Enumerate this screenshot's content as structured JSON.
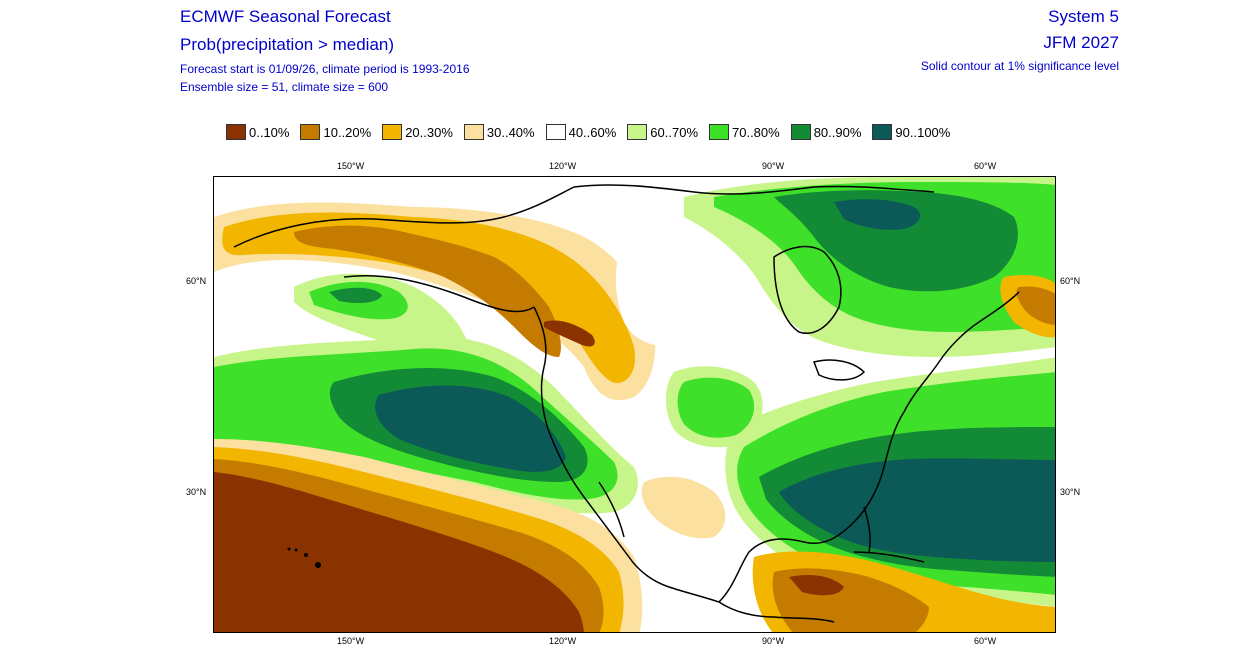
{
  "header": {
    "title": "ECMWF Seasonal Forecast",
    "subtitle": "Prob(precipitation > median)",
    "forecast_info": "Forecast start is 01/09/26, climate period is 1993-2016",
    "ensemble_info": "Ensemble size = 51, climate size = 600",
    "system": "System 5",
    "period": "JFM 2027",
    "significance_note": "Solid contour at 1% significance level"
  },
  "legend": [
    {
      "label": "0..10%",
      "color": "#8b3300"
    },
    {
      "label": "10..20%",
      "color": "#c47b00"
    },
    {
      "label": "20..30%",
      "color": "#f2b500"
    },
    {
      "label": "30..40%",
      "color": "#fbe0a0"
    },
    {
      "label": "40..60%",
      "color": "#ffffff"
    },
    {
      "label": "60..70%",
      "color": "#c8f58a"
    },
    {
      "label": "70..80%",
      "color": "#3fe02a"
    },
    {
      "label": "80..90%",
      "color": "#138a35"
    },
    {
      "label": "90..100%",
      "color": "#0b5a58"
    }
  ],
  "axes": {
    "lon_top": [
      "150°W",
      "120°W",
      "90°W",
      "60°W"
    ],
    "lon_bottom": [
      "150°W",
      "120°W",
      "90°W",
      "60°W"
    ],
    "lat_left": [
      "60°N",
      "30°N"
    ],
    "lat_right": [
      "60°N",
      "30°N"
    ]
  }
}
